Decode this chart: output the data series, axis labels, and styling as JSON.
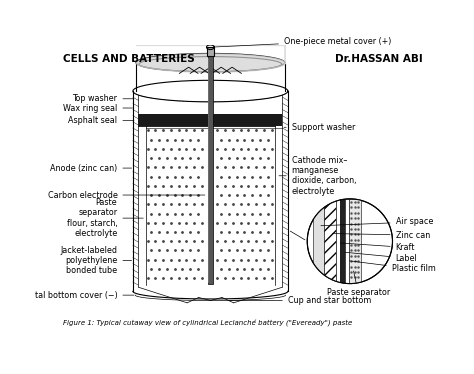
{
  "title_left": "CELLS AND BATTERIES",
  "title_right": "Dr.HASSAN ABI",
  "caption": "Figure 1: Typical cutaway view of cylindrical Leclanché battery (\"Eveready\") paste",
  "bg_color": "#ffffff",
  "line_color": "#000000",
  "label_fontsize": 5.8,
  "title_fontsize": 7.5
}
